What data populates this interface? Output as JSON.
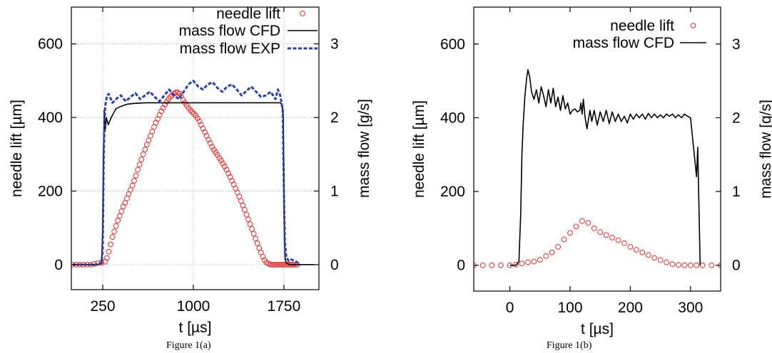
{
  "figures": [
    {
      "caption": "Figure 1(a)",
      "chart_data": {
        "type": "line",
        "xlabel": "t [µs]",
        "ylabel": "needle lift [µm]",
        "y2label": "mass flow [g/s]",
        "xlim": [
          -10,
          2040
        ],
        "ylim": [
          -68,
          700
        ],
        "y2lim": [
          -0.34,
          3.5
        ],
        "x_ticks": [
          250,
          1000,
          1750
        ],
        "y_ticks": [
          0,
          200,
          400,
          600
        ],
        "y2_ticks": [
          0,
          1,
          2,
          3
        ],
        "grid": true,
        "legend_position": "top-right",
        "series": [
          {
            "name": "needle lift",
            "style": "circles",
            "color": "#e03030",
            "axis": "left",
            "x": [
              0,
              30,
              60,
              90,
              120,
              150,
              180,
              210,
              240,
              270,
              285,
              300,
              315,
              330,
              345,
              360,
              375,
              390,
              405,
              420,
              435,
              450,
              465,
              480,
              495,
              510,
              525,
              540,
              555,
              570,
              585,
              600,
              615,
              630,
              645,
              660,
              675,
              690,
              705,
              720,
              735,
              750,
              765,
              780,
              795,
              810,
              825,
              840,
              855,
              870,
              885,
              900,
              915,
              930,
              945,
              960,
              975,
              990,
              1005,
              1020,
              1035,
              1050,
              1065,
              1080,
              1095,
              1110,
              1125,
              1140,
              1155,
              1170,
              1185,
              1200,
              1215,
              1230,
              1245,
              1260,
              1275,
              1290,
              1305,
              1320,
              1335,
              1350,
              1365,
              1380,
              1395,
              1410,
              1425,
              1440,
              1455,
              1470,
              1485,
              1500,
              1515,
              1530,
              1545,
              1560,
              1575,
              1590,
              1605,
              1620,
              1635,
              1650,
              1665,
              1680,
              1695,
              1710,
              1725,
              1740,
              1755,
              1770,
              1785,
              1800,
              1815,
              1830,
              1845,
              1860
            ],
            "y": [
              0,
              0,
              0,
              0,
              0,
              0,
              2,
              4,
              5,
              8,
              18,
              35,
              55,
              75,
              90,
              105,
              120,
              132,
              145,
              158,
              168,
              180,
              192,
              203,
              215,
              228,
              242,
              258,
              272,
              286,
              300,
              313,
              326,
              338,
              350,
              362,
              374,
              386,
              396,
              407,
              417,
              426,
              435,
              443,
              450,
              456,
              461,
              465,
              468,
              468,
              465,
              458,
              448,
              440,
              433,
              426,
              420,
              415,
              410,
              405,
              398,
              390,
              380,
              370,
              360,
              350,
              340,
              330,
              320,
              312,
              305,
              298,
              290,
              283,
              275,
              267,
              258,
              248,
              238,
              228,
              218,
              207,
              196,
              185,
              173,
              161,
              149,
              136,
              123,
              110,
              97,
              84,
              71,
              58,
              45,
              33,
              22,
              12,
              6,
              3,
              1,
              0,
              0,
              0,
              0,
              0,
              0,
              0,
              0,
              0,
              0,
              0,
              0,
              0,
              0,
              0
            ]
          },
          {
            "name": "mass flow CFD",
            "style": "solid",
            "color": "#000000",
            "axis": "right",
            "x": [
              0,
              200,
              240,
              250,
              255,
              262,
              270,
              280,
              295,
              320,
              360,
              400,
              450,
              500,
              600,
              800,
              1000,
              1200,
              1400,
              1600,
              1720,
              1735,
              1745,
              1750,
              1755,
              1760,
              1770,
              1800,
              2000
            ],
            "y": [
              0.0,
              0.0,
              0.02,
              0.5,
              1.2,
              2.1,
              1.82,
              2.0,
              1.9,
              2.0,
              2.12,
              2.15,
              2.18,
              2.19,
              2.2,
              2.2,
              2.2,
              2.2,
              2.2,
              2.2,
              2.2,
              2.18,
              2.0,
              1.0,
              0.3,
              0.08,
              0.02,
              0.0,
              0.0
            ]
          },
          {
            "name": "mass flow EXP",
            "style": "dashed",
            "color": "#2a3fa8",
            "axis": "right",
            "x": [
              0,
              200,
              240,
              250,
              258,
              270,
              285,
              300,
              330,
              360,
              400,
              440,
              480,
              520,
              560,
              600,
              640,
              680,
              720,
              760,
              800,
              840,
              880,
              920,
              960,
              1000,
              1040,
              1080,
              1120,
              1160,
              1200,
              1240,
              1280,
              1320,
              1360,
              1400,
              1440,
              1480,
              1520,
              1560,
              1600,
              1640,
              1680,
              1700,
              1720,
              1740,
              1750,
              1758,
              1770,
              1790,
              1810,
              1840,
              1870
            ],
            "y": [
              0.0,
              0.0,
              0.02,
              0.2,
              1.5,
              2.15,
              2.3,
              2.32,
              2.2,
              2.25,
              2.3,
              2.22,
              2.28,
              2.33,
              2.25,
              2.3,
              2.35,
              2.28,
              2.22,
              2.3,
              2.38,
              2.3,
              2.25,
              2.35,
              2.45,
              2.5,
              2.42,
              2.38,
              2.45,
              2.48,
              2.4,
              2.35,
              2.42,
              2.45,
              2.38,
              2.3,
              2.36,
              2.42,
              2.35,
              2.28,
              2.3,
              2.35,
              2.25,
              2.38,
              2.3,
              2.1,
              1.0,
              0.3,
              0.1,
              0.05,
              0.07,
              0.05,
              0.02
            ]
          }
        ]
      }
    },
    {
      "caption": "Figure 1(b)",
      "chart_data": {
        "type": "line",
        "xlabel": "t [µs]",
        "ylabel": "needle lift [µm]",
        "y2label": "mass flow [g/s]",
        "xlim": [
          -60,
          350
        ],
        "ylim": [
          -70,
          700
        ],
        "y2lim": [
          -0.35,
          3.5
        ],
        "x_ticks": [
          0,
          100,
          200,
          300
        ],
        "y_ticks": [
          0,
          200,
          400,
          600
        ],
        "y2_ticks": [
          0,
          1,
          2,
          3
        ],
        "grid": false,
        "legend_position": "top-right",
        "series": [
          {
            "name": "needle lift",
            "style": "circles",
            "color": "#e03030",
            "axis": "left",
            "x": [
              -60,
              -45,
              -30,
              -15,
              0,
              10,
              20,
              30,
              40,
              50,
              60,
              70,
              80,
              90,
              100,
              110,
              120,
              130,
              140,
              150,
              160,
              170,
              180,
              190,
              200,
              210,
              220,
              230,
              240,
              250,
              260,
              270,
              280,
              290,
              300,
              310,
              320,
              335,
              350
            ],
            "y": [
              0,
              0,
              0,
              0,
              0,
              2,
              5,
              8,
              10,
              15,
              25,
              35,
              50,
              70,
              88,
              105,
              120,
              115,
              100,
              90,
              82,
              75,
              68,
              60,
              50,
              42,
              35,
              28,
              20,
              14,
              8,
              3,
              1,
              0,
              0,
              0,
              0,
              0,
              0
            ]
          },
          {
            "name": "mass flow CFD",
            "style": "solid",
            "color": "#000000",
            "axis": "right",
            "x": [
              0,
              10,
              15,
              18,
              20,
              22,
              25,
              28,
              30,
              33,
              36,
              40,
              44,
              48,
              52,
              56,
              60,
              64,
              68,
              72,
              76,
              80,
              84,
              88,
              92,
              96,
              100,
              104,
              108,
              112,
              116,
              118,
              120,
              122,
              125,
              128,
              130,
              133,
              136,
              140,
              145,
              150,
              155,
              160,
              165,
              170,
              175,
              180,
              185,
              190,
              195,
              200,
              205,
              210,
              215,
              220,
              225,
              230,
              235,
              240,
              245,
              250,
              255,
              260,
              265,
              270,
              275,
              280,
              285,
              290,
              295,
              300,
              305,
              310,
              312,
              314,
              316
            ],
            "y": [
              0.0,
              0.0,
              0.05,
              0.7,
              1.5,
              1.9,
              2.3,
              2.55,
              2.65,
              2.55,
              2.35,
              2.25,
              2.38,
              2.2,
              2.42,
              2.3,
              2.15,
              2.38,
              2.2,
              2.4,
              2.15,
              2.28,
              2.1,
              2.3,
              2.12,
              2.2,
              2.05,
              2.1,
              2.12,
              2.08,
              2.1,
              2.2,
              2.05,
              2.25,
              2.0,
              1.85,
              1.95,
              2.1,
              1.95,
              2.1,
              1.9,
              2.08,
              1.95,
              2.1,
              1.92,
              2.08,
              1.95,
              2.05,
              1.95,
              2.02,
              1.93,
              2.05,
              1.98,
              2.05,
              2.0,
              2.05,
              1.98,
              2.06,
              2.0,
              2.05,
              2.0,
              2.04,
              2.0,
              2.05,
              2.02,
              2.05,
              2.0,
              2.04,
              2.0,
              2.05,
              2.02,
              2.0,
              1.6,
              1.2,
              1.6,
              0.8,
              0.0
            ]
          }
        ]
      }
    }
  ]
}
